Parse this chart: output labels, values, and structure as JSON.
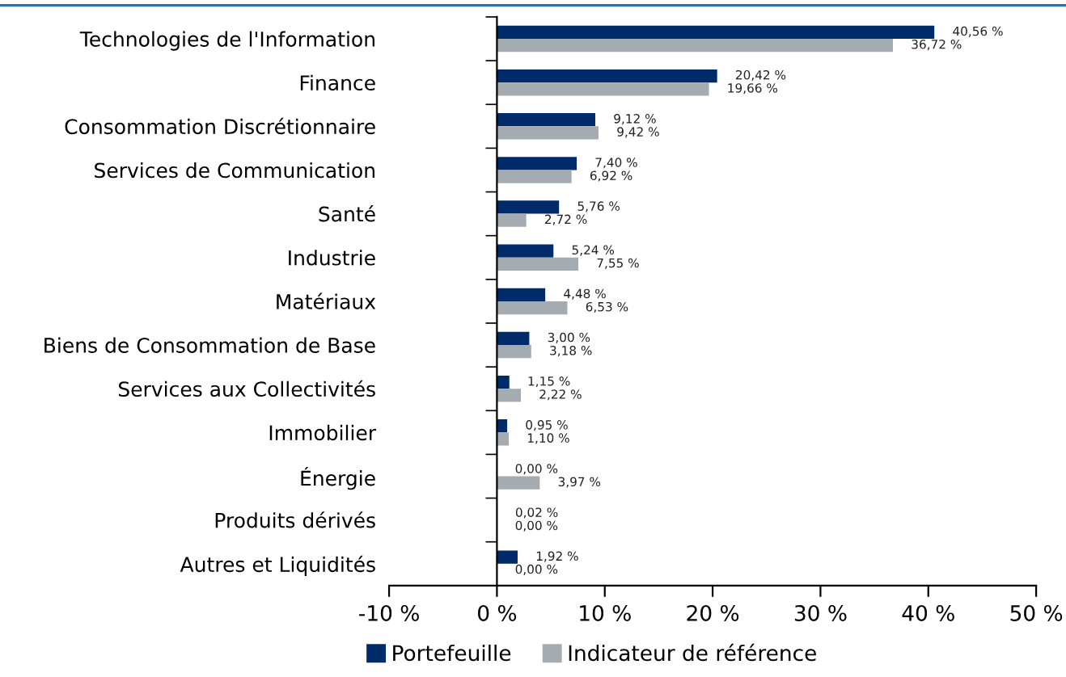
{
  "chart_data": {
    "type": "bar",
    "orientation": "horizontal",
    "categories": [
      "Technologies de l'Information",
      "Finance",
      "Consommation Discrétionnaire",
      "Services de Communication",
      "Santé",
      "Industrie",
      "Matériaux",
      "Biens de Consommation de Base",
      "Services aux Collectivités",
      "Immobilier",
      "Énergie",
      "Produits dérivés",
      "Autres et Liquidités"
    ],
    "series": [
      {
        "name": "Portefeuille",
        "color": "#002b6b",
        "values": [
          40.56,
          20.42,
          9.12,
          7.4,
          5.76,
          5.24,
          4.48,
          3.0,
          1.15,
          0.95,
          0.0,
          0.02,
          1.92
        ],
        "value_labels": [
          "40,56 %",
          "20,42 %",
          "9,12 %",
          "7,40 %",
          "5,76 %",
          "5,24 %",
          "4,48 %",
          "3,00 %",
          "1,15 %",
          "0,95 %",
          "0,00 %",
          "0,02 %",
          "1,92 %"
        ]
      },
      {
        "name": "Indicateur de référence",
        "color": "#a5acb1",
        "values": [
          36.72,
          19.66,
          9.42,
          6.92,
          2.72,
          7.55,
          6.53,
          3.18,
          2.22,
          1.1,
          3.97,
          0.0,
          0.0
        ],
        "value_labels": [
          "36,72 %",
          "19,66 %",
          "9,42 %",
          "6,92 %",
          "2,72 %",
          "7,55 %",
          "6,53 %",
          "3,18 %",
          "2,22 %",
          "1,10 %",
          "3,97 %",
          "0,00 %",
          "0,00 %"
        ]
      }
    ],
    "xlim": [
      -10,
      50
    ],
    "xticks": [
      {
        "value": -10,
        "label": "-10 %"
      },
      {
        "value": 0,
        "label": "0 %"
      },
      {
        "value": 10,
        "label": "10 %"
      },
      {
        "value": 20,
        "label": "20 %"
      },
      {
        "value": 30,
        "label": "30 %"
      },
      {
        "value": 40,
        "label": "40 %"
      },
      {
        "value": 50,
        "label": "50 %"
      }
    ],
    "legend": "bottom"
  }
}
